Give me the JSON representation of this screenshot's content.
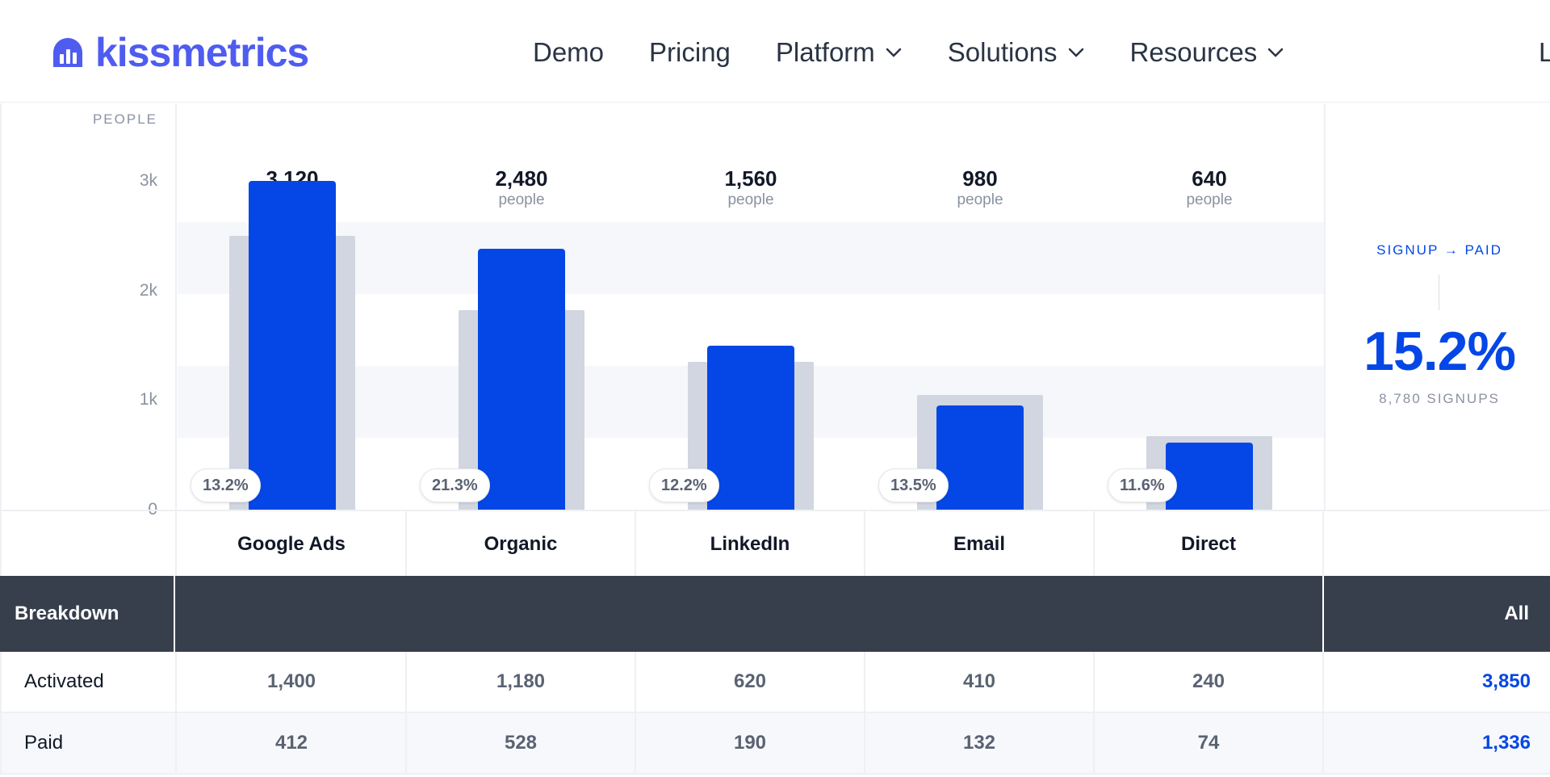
{
  "header": {
    "brand": "kissmetrics",
    "nav": [
      {
        "label": "Demo",
        "dropdown": false
      },
      {
        "label": "Pricing",
        "dropdown": false
      },
      {
        "label": "Platform",
        "dropdown": true
      },
      {
        "label": "Solutions",
        "dropdown": true
      },
      {
        "label": "Resources",
        "dropdown": true
      }
    ],
    "nav_cut_text": "L"
  },
  "colors": {
    "brand": "#4f5cf0",
    "accent": "#0447e6",
    "ghost_bar": "#d1d6e1",
    "table_header": "#373f4d"
  },
  "chart_data": {
    "type": "bar",
    "ylabel": "PEOPLE",
    "ylim": [
      0,
      3000
    ],
    "yticks": [
      "0",
      "1k",
      "2k",
      "3k"
    ],
    "categories": [
      "Google Ads",
      "Organic",
      "LinkedIn",
      "Email",
      "Direct"
    ],
    "totals": [
      "3,120",
      "2,480",
      "1,560",
      "980",
      "640"
    ],
    "total_unit": "people",
    "series": [
      {
        "values": [
          3000,
          2380,
          1500,
          950,
          610
        ]
      },
      {
        "values": [
          2500,
          1820,
          1350,
          1050,
          670
        ]
      }
    ],
    "percent_labels": [
      "13.2%",
      "21.3%",
      "12.2%",
      "13.5%",
      "11.6%"
    ]
  },
  "summary": {
    "label": "SIGNUP → PAID",
    "value": "15.2%",
    "sub": "8,780 SIGNUPS"
  },
  "table": {
    "header_label": "Breakdown",
    "all_label": "All",
    "rows": [
      {
        "label": "Activated",
        "values": [
          "1,400",
          "1,180",
          "620",
          "410",
          "240"
        ],
        "all": "3,850"
      },
      {
        "label": "Paid",
        "values": [
          "412",
          "528",
          "190",
          "132",
          "74"
        ],
        "all": "1,336"
      }
    ]
  }
}
